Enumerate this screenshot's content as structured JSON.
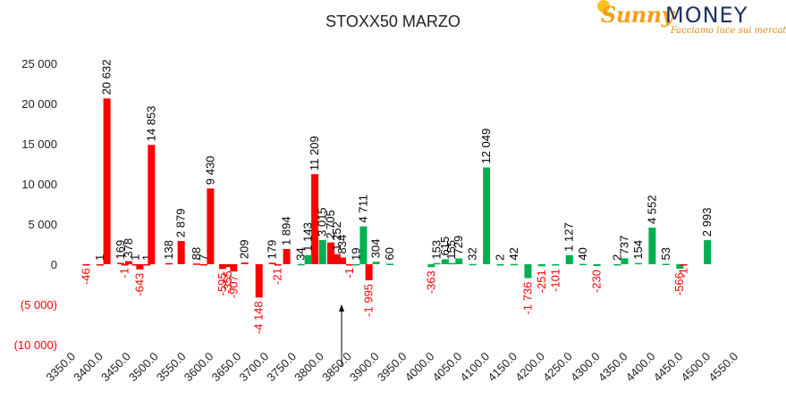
{
  "colors": {
    "call": "#00b050",
    "put": "#ff0000",
    "put_label": "#ff0000",
    "text": "#000000",
    "axis_text": "#222222"
  },
  "logo": {
    "brand_a": "Sunny",
    "brand_b": "MONEY",
    "tagline": "Facciamo luce sui mercati"
  },
  "annotation": {
    "type": "arrow-up",
    "x": 3837.5
  },
  "chart_data": {
    "type": "bar",
    "title": "STOXX50 MARZO",
    "xlabel": "",
    "ylabel": "",
    "ylim": [
      -10000,
      25000
    ],
    "xlim": [
      3350,
      4550
    ],
    "grid": false,
    "legend": "none",
    "y_ticks": [
      {
        "v": 25000,
        "label": "25 000"
      },
      {
        "v": 20000,
        "label": "20 000"
      },
      {
        "v": 15000,
        "label": "15 000"
      },
      {
        "v": 10000,
        "label": "10 000"
      },
      {
        "v": 5000,
        "label": "5 000"
      },
      {
        "v": 0,
        "label": "0"
      },
      {
        "v": -5000,
        "label": "(5 000)"
      },
      {
        "v": -10000,
        "label": "(10 000)"
      }
    ],
    "x_ticks": [
      "3350.0",
      "3400.0",
      "3450.0",
      "3500.0",
      "3550.0",
      "3600.0",
      "3650.0",
      "3700.0",
      "3750.0",
      "3800.0",
      "3850.0",
      "3900.0",
      "3950.0",
      "4000.0",
      "4050.0",
      "4100.0",
      "4150.0",
      "4200.0",
      "4250.0",
      "4300.0",
      "4350.0",
      "4400.0",
      "4450.0",
      "4500.0",
      "4550.0"
    ],
    "series": [
      {
        "role": "put",
        "points": [
          {
            "x": 3375,
            "v": -46,
            "label": "-46",
            "lab": "val"
          },
          {
            "x": 3400,
            "v": 1,
            "label": "1",
            "lab": "pos"
          },
          {
            "x": 3412.5,
            "v": 20632,
            "label": "20 632",
            "lab": "pos"
          },
          {
            "x": 3437.5,
            "v": 169,
            "label": "169",
            "lab": "pos"
          },
          {
            "x": 3445,
            "v": -1,
            "label": "-1",
            "lab": "val"
          },
          {
            "x": 3452,
            "v": 378,
            "label": "378",
            "lab": "pos"
          },
          {
            "x": 3464,
            "v": 1,
            "label": "1",
            "lab": "pos"
          },
          {
            "x": 3472,
            "v": -643,
            "label": "-643",
            "lab": "val"
          },
          {
            "x": 3485,
            "v": 1,
            "label": "1",
            "lab": "pos"
          },
          {
            "x": 3493,
            "v": 14853,
            "label": "14 853",
            "lab": "pos"
          },
          {
            "x": 3525,
            "v": 138,
            "label": "138",
            "lab": "pos"
          },
          {
            "x": 3547,
            "v": 2879,
            "label": "2 879",
            "lab": "pos"
          },
          {
            "x": 3575,
            "v": 88,
            "label": "88",
            "lab": "pos"
          },
          {
            "x": 3588,
            "v": 7,
            "label": "7",
            "lab": "pos"
          },
          {
            "x": 3600,
            "v": 9430,
            "label": "9 430",
            "lab": "pos"
          },
          {
            "x": 3622,
            "v": -595,
            "label": "-595",
            "lab": "val"
          },
          {
            "x": 3632,
            "v": -355,
            "label": "-355",
            "lab": "val"
          },
          {
            "x": 3642,
            "v": -907,
            "label": "-907",
            "lab": "val"
          },
          {
            "x": 3662,
            "v": 209,
            "label": "209",
            "lab": "pos"
          },
          {
            "x": 3688,
            "v": -4148,
            "label": "-4 148",
            "lab": "val"
          },
          {
            "x": 3712,
            "v": 179,
            "label": "179",
            "lab": "pos"
          },
          {
            "x": 3722,
            "v": -21,
            "label": "-21",
            "lab": "val"
          },
          {
            "x": 3738,
            "v": 1894,
            "label": "1 894",
            "lab": "pos"
          },
          {
            "x": 3789,
            "v": 11209,
            "label": "11 209",
            "lab": "pos"
          },
          {
            "x": 3818,
            "v": 2705,
            "label": "2 705",
            "lab": "pos"
          },
          {
            "x": 3829,
            "v": 1252,
            "label": "1 252",
            "lab": "pos"
          },
          {
            "x": 3839,
            "v": 834,
            "label": "834",
            "lab": "pos"
          },
          {
            "x": 3852,
            "v": -1,
            "label": "-1",
            "lab": "val"
          },
          {
            "x": 3887,
            "v": -1995,
            "label": "-1 995",
            "lab": "val"
          }
        ]
      },
      {
        "role": "call",
        "points": [
          {
            "x": 3764,
            "v": 34,
            "label": "34",
            "lab": "pos"
          },
          {
            "x": 3777,
            "v": 1143,
            "label": "1 143",
            "lab": "pos"
          },
          {
            "x": 3803,
            "v": 3015,
            "label": "3 015",
            "lab": "pos"
          },
          {
            "x": 3864,
            "v": 19,
            "label": "19",
            "lab": "pos"
          },
          {
            "x": 3877,
            "v": 4711,
            "label": "4 711",
            "lab": "pos"
          },
          {
            "x": 3900,
            "v": 304,
            "label": "304",
            "lab": "pos"
          },
          {
            "x": 3925,
            "v": 60,
            "label": "60",
            "lab": "pos"
          },
          {
            "x": 4000,
            "v": -363,
            "label": "-363",
            "lab": "val"
          },
          {
            "x": 4010,
            "v": 153,
            "label": "153",
            "lab": "pos"
          },
          {
            "x": 4025,
            "v": 615,
            "label": "615",
            "lab": "pos"
          },
          {
            "x": 4037,
            "v": 155,
            "label": "155",
            "lab": "pos"
          },
          {
            "x": 4050,
            "v": 729,
            "label": "729",
            "lab": "pos"
          },
          {
            "x": 4075,
            "v": 32,
            "label": "32",
            "lab": "pos"
          },
          {
            "x": 4100,
            "v": 12049,
            "label": "12 049",
            "lab": "pos"
          },
          {
            "x": 4125,
            "v": 2,
            "label": "2",
            "lab": "pos"
          },
          {
            "x": 4150,
            "v": 42,
            "label": "42",
            "lab": "pos"
          },
          {
            "x": 4175,
            "v": -1736,
            "label": "-1 736",
            "lab": "val"
          },
          {
            "x": 4200,
            "v": -251,
            "label": "-251",
            "lab": "val"
          },
          {
            "x": 4225,
            "v": -101,
            "label": "-101",
            "lab": "val"
          },
          {
            "x": 4250,
            "v": 1127,
            "label": "1 127",
            "lab": "pos"
          },
          {
            "x": 4275,
            "v": 40,
            "label": "40",
            "lab": "pos"
          },
          {
            "x": 4300,
            "v": -230,
            "label": "-230",
            "lab": "val"
          },
          {
            "x": 4337,
            "v": 2,
            "label": "2",
            "lab": "pos"
          },
          {
            "x": 4350,
            "v": 737,
            "label": "737",
            "lab": "pos"
          },
          {
            "x": 4375,
            "v": 154,
            "label": "154",
            "lab": "pos"
          },
          {
            "x": 4400,
            "v": 4552,
            "label": "4 552",
            "lab": "pos"
          },
          {
            "x": 4425,
            "v": 53,
            "label": "53",
            "lab": "pos"
          },
          {
            "x": 4450,
            "v": -566,
            "label": "-566",
            "lab": "val"
          },
          {
            "x": 4500,
            "v": 2993,
            "label": "2 993",
            "lab": "pos"
          }
        ]
      },
      {
        "role": "put",
        "points": [
          {
            "x": 4457,
            "v": -1,
            "label": "-1",
            "lab": "val"
          }
        ]
      }
    ]
  }
}
